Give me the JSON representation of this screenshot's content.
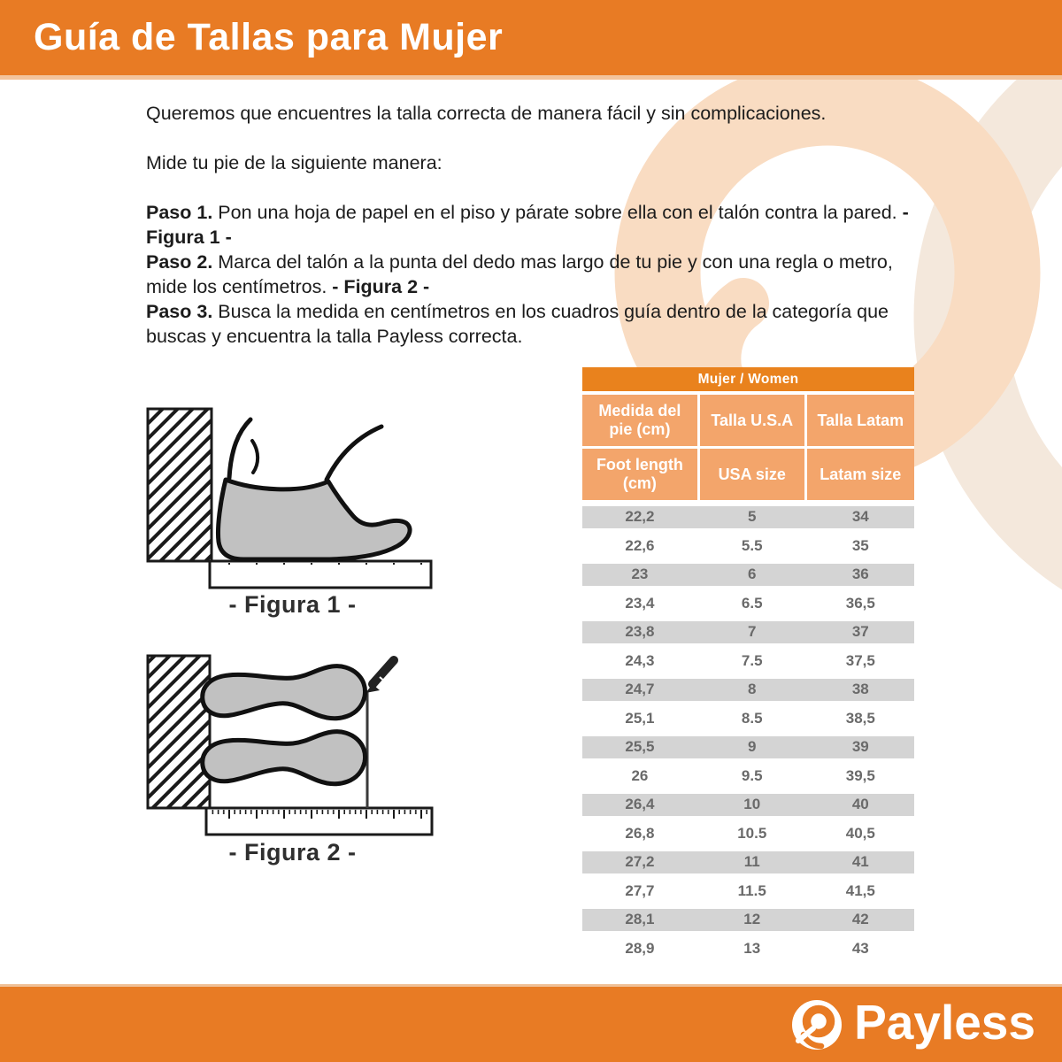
{
  "header": {
    "title": "Guía de Tallas para Mujer"
  },
  "intro": {
    "line1": "Queremos que encuentres la talla correcta de manera fácil y sin complicaciones.",
    "line2": "Mide tu pie de la siguiente manera:"
  },
  "steps": [
    {
      "label": "Paso 1.",
      "text": " Pon una hoja de papel en el piso y párate sobre ella con el talón contra la pared. ",
      "ref": "- Figura 1 -"
    },
    {
      "label": "Paso 2.",
      "text": " Marca del talón a la punta del dedo mas largo de tu pie y con una regla o metro, mide los centímetros. ",
      "ref": "- Figura 2 -"
    },
    {
      "label": "Paso 3.",
      "text": " Busca la medida en centímetros en los cuadros guía dentro de la categoría que buscas y encuentra la talla Payless correcta.",
      "ref": ""
    }
  ],
  "figures": [
    {
      "caption": "- Figura 1 -"
    },
    {
      "caption": "- Figura 2 -"
    }
  ],
  "table": {
    "group_header": "Mujer / Women",
    "columns_es": [
      "Medida del pie (cm)",
      "Talla U.S.A",
      "Talla Latam"
    ],
    "columns_en": [
      "Foot length (cm)",
      "USA size",
      "Latam size"
    ],
    "rows": [
      [
        "22,2",
        "5",
        "34"
      ],
      [
        "22,6",
        "5.5",
        "35"
      ],
      [
        "23",
        "6",
        "36"
      ],
      [
        "23,4",
        "6.5",
        "36,5"
      ],
      [
        "23,8",
        "7",
        "37"
      ],
      [
        "24,3",
        "7.5",
        "37,5"
      ],
      [
        "24,7",
        "8",
        "38"
      ],
      [
        "25,1",
        "8.5",
        "38,5"
      ],
      [
        "25,5",
        "9",
        "39"
      ],
      [
        "26",
        "9.5",
        "39,5"
      ],
      [
        "26,4",
        "10",
        "40"
      ],
      [
        "26,8",
        "10.5",
        "40,5"
      ],
      [
        "27,2",
        "11",
        "41"
      ],
      [
        "27,7",
        "11.5",
        "41,5"
      ],
      [
        "28,1",
        "12",
        "42"
      ],
      [
        "28,9",
        "13",
        "43"
      ]
    ]
  },
  "footer": {
    "brand": "Payless"
  },
  "colors": {
    "brand_orange": "#E87B24",
    "group_header_orange": "#E9821D",
    "header_cell_orange": "#F3A56B",
    "row_gray": "#D4D4D4",
    "table_text_gray": "#6A6A6A",
    "watermark_peach": "#F9DCC2",
    "watermark_cream": "#F4E8DC"
  }
}
